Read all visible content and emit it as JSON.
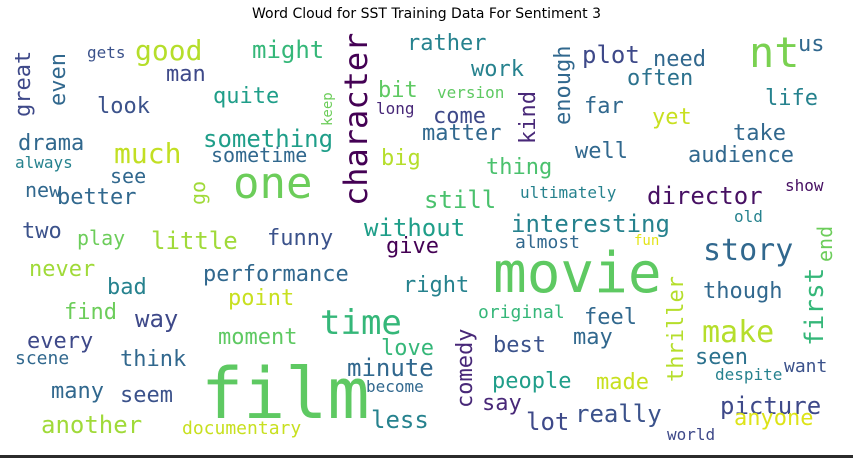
{
  "chart_data": {
    "type": "wordcloud",
    "title": "Word Cloud for SST Training Data For Sentiment 3",
    "words": [
      {
        "text": "film",
        "weight": 100,
        "color": "#5ec962"
      },
      {
        "text": "movie",
        "weight": 95,
        "color": "#5ec962"
      },
      {
        "text": "one",
        "weight": 62,
        "color": "#6ccd5a"
      },
      {
        "text": "nt",
        "weight": 56,
        "color": "#7ad151"
      },
      {
        "text": "time",
        "weight": 46,
        "color": "#35b779"
      },
      {
        "text": "character",
        "weight": 44,
        "color": "#440154"
      },
      {
        "text": "story",
        "weight": 40,
        "color": "#31688e"
      },
      {
        "text": "make",
        "weight": 38,
        "color": "#b5de2b"
      },
      {
        "text": "good",
        "weight": 36,
        "color": "#b5de2b"
      },
      {
        "text": "much",
        "weight": 33,
        "color": "#c2df23"
      },
      {
        "text": "director",
        "weight": 30,
        "color": "#471063"
      },
      {
        "text": "picture",
        "weight": 30,
        "color": "#3e4989"
      },
      {
        "text": "really",
        "weight": 30,
        "color": "#3b528b"
      },
      {
        "text": "first",
        "weight": 30,
        "color": "#35b779"
      },
      {
        "text": "comedy",
        "weight": 28,
        "color": "#482878"
      },
      {
        "text": "performance",
        "weight": 28,
        "color": "#31688e"
      },
      {
        "text": "interesting",
        "weight": 28,
        "color": "#26828e"
      },
      {
        "text": "something",
        "weight": 28,
        "color": "#1f9e89"
      },
      {
        "text": "little",
        "weight": 28,
        "color": "#a0da39"
      },
      {
        "text": "another",
        "weight": 28,
        "color": "#a0da39"
      },
      {
        "text": "people",
        "weight": 28,
        "color": "#1f9e89"
      },
      {
        "text": "minute",
        "weight": 28,
        "color": "#31688e"
      },
      {
        "text": "without",
        "weight": 28,
        "color": "#1f9e89"
      },
      {
        "text": "still",
        "weight": 28,
        "color": "#4ac16d"
      },
      {
        "text": "audience",
        "weight": 26,
        "color": "#31688e"
      },
      {
        "text": "enough",
        "weight": 26,
        "color": "#31688e"
      },
      {
        "text": "kind",
        "weight": 26,
        "color": "#482878"
      },
      {
        "text": "thriller",
        "weight": 26,
        "color": "#b5de2b"
      },
      {
        "text": "great",
        "weight": 26,
        "color": "#3e4989"
      },
      {
        "text": "might",
        "weight": 26,
        "color": "#35b779"
      },
      {
        "text": "plot",
        "weight": 26,
        "color": "#3e4989"
      },
      {
        "text": "point",
        "weight": 26,
        "color": "#c8e020"
      },
      {
        "text": "drama",
        "weight": 26,
        "color": "#31688e"
      },
      {
        "text": "quite",
        "weight": 26,
        "color": "#1f9e89"
      },
      {
        "text": "rather",
        "weight": 26,
        "color": "#26828e"
      },
      {
        "text": "work",
        "weight": 26,
        "color": "#26828e"
      },
      {
        "text": "way",
        "weight": 26,
        "color": "#3e4989"
      },
      {
        "text": "find",
        "weight": 26,
        "color": "#6ccd5a"
      },
      {
        "text": "moment",
        "weight": 26,
        "color": "#5ec962"
      },
      {
        "text": "funny",
        "weight": 26,
        "color": "#3b528b"
      },
      {
        "text": "look",
        "weight": 26,
        "color": "#3b528b"
      },
      {
        "text": "man",
        "weight": 26,
        "color": "#3e4989"
      },
      {
        "text": "well",
        "weight": 26,
        "color": "#31688e"
      },
      {
        "text": "seen",
        "weight": 26,
        "color": "#2c728e"
      },
      {
        "text": "though",
        "weight": 26,
        "color": "#31688e"
      },
      {
        "text": "need",
        "weight": 26,
        "color": "#31688e"
      },
      {
        "text": "life",
        "weight": 26,
        "color": "#26828e"
      },
      {
        "text": "take",
        "weight": 26,
        "color": "#31688e"
      },
      {
        "text": "thing",
        "weight": 26,
        "color": "#4ac16d"
      },
      {
        "text": "matter",
        "weight": 26,
        "color": "#31688e"
      },
      {
        "text": "come",
        "weight": 26,
        "color": "#3e4989"
      },
      {
        "text": "far",
        "weight": 26,
        "color": "#31688e"
      },
      {
        "text": "often",
        "weight": 26,
        "color": "#2c728e"
      },
      {
        "text": "yet",
        "weight": 26,
        "color": "#c8e020"
      },
      {
        "text": "big",
        "weight": 26,
        "color": "#b5de2b"
      },
      {
        "text": "give",
        "weight": 24,
        "color": "#440154"
      },
      {
        "text": "right",
        "weight": 24,
        "color": "#26828e"
      },
      {
        "text": "almost",
        "weight": 22,
        "color": "#31688e"
      },
      {
        "text": "love",
        "weight": 24,
        "color": "#35b779"
      },
      {
        "text": "best",
        "weight": 24,
        "color": "#3b528b"
      },
      {
        "text": "made",
        "weight": 24,
        "color": "#c8e020"
      },
      {
        "text": "feel",
        "weight": 24,
        "color": "#31688e"
      },
      {
        "text": "may",
        "weight": 24,
        "color": "#31688e"
      },
      {
        "text": "say",
        "weight": 24,
        "color": "#482878"
      },
      {
        "text": "lot",
        "weight": 24,
        "color": "#3e4989"
      },
      {
        "text": "less",
        "weight": 24,
        "color": "#26828e"
      },
      {
        "text": "seem",
        "weight": 24,
        "color": "#3b528b"
      },
      {
        "text": "many",
        "weight": 24,
        "color": "#31688e"
      },
      {
        "text": "think",
        "weight": 24,
        "color": "#31688e"
      },
      {
        "text": "every",
        "weight": 24,
        "color": "#3e4989"
      },
      {
        "text": "scene",
        "weight": 20,
        "color": "#31688e"
      },
      {
        "text": "never",
        "weight": 24,
        "color": "#a0da39"
      },
      {
        "text": "bad",
        "weight": 24,
        "color": "#26828e"
      },
      {
        "text": "play",
        "weight": 22,
        "color": "#6ccd5a"
      },
      {
        "text": "two",
        "weight": 22,
        "color": "#3b528b"
      },
      {
        "text": "new",
        "weight": 22,
        "color": "#31688e"
      },
      {
        "text": "better",
        "weight": 22,
        "color": "#31688e"
      },
      {
        "text": "see",
        "weight": 22,
        "color": "#31688e"
      },
      {
        "text": "go",
        "weight": 22,
        "color": "#a0da39"
      },
      {
        "text": "sometime",
        "weight": 22,
        "color": "#31688e"
      },
      {
        "text": "even",
        "weight": 22,
        "color": "#31688e"
      },
      {
        "text": "bit",
        "weight": 22,
        "color": "#5ec962"
      },
      {
        "text": "us",
        "weight": 22,
        "color": "#31688e"
      },
      {
        "text": "end",
        "weight": 22,
        "color": "#6ccd5a"
      },
      {
        "text": "anyone",
        "weight": 22,
        "color": "#dde318"
      },
      {
        "text": "original",
        "weight": 18,
        "color": "#35b779"
      },
      {
        "text": "documentary",
        "weight": 18,
        "color": "#c8e020"
      },
      {
        "text": "want",
        "weight": 18,
        "color": "#3b528b"
      },
      {
        "text": "show",
        "weight": 16,
        "color": "#471063"
      },
      {
        "text": "old",
        "weight": 16,
        "color": "#26828e"
      },
      {
        "text": "fun",
        "weight": 14,
        "color": "#e2e418"
      },
      {
        "text": "gets",
        "weight": 16,
        "color": "#3b528b"
      },
      {
        "text": "always",
        "weight": 16,
        "color": "#26828e"
      },
      {
        "text": "version",
        "weight": 16,
        "color": "#5ec962"
      },
      {
        "text": "long",
        "weight": 16,
        "color": "#482878"
      },
      {
        "text": "keep",
        "weight": 14,
        "color": "#6ccd5a"
      },
      {
        "text": "ultimately",
        "weight": 16,
        "color": "#26828e"
      },
      {
        "text": "become",
        "weight": 16,
        "color": "#31688e"
      },
      {
        "text": "despite",
        "weight": 16,
        "color": "#26828e"
      },
      {
        "text": "world",
        "weight": 16,
        "color": "#3e4989"
      }
    ]
  }
}
